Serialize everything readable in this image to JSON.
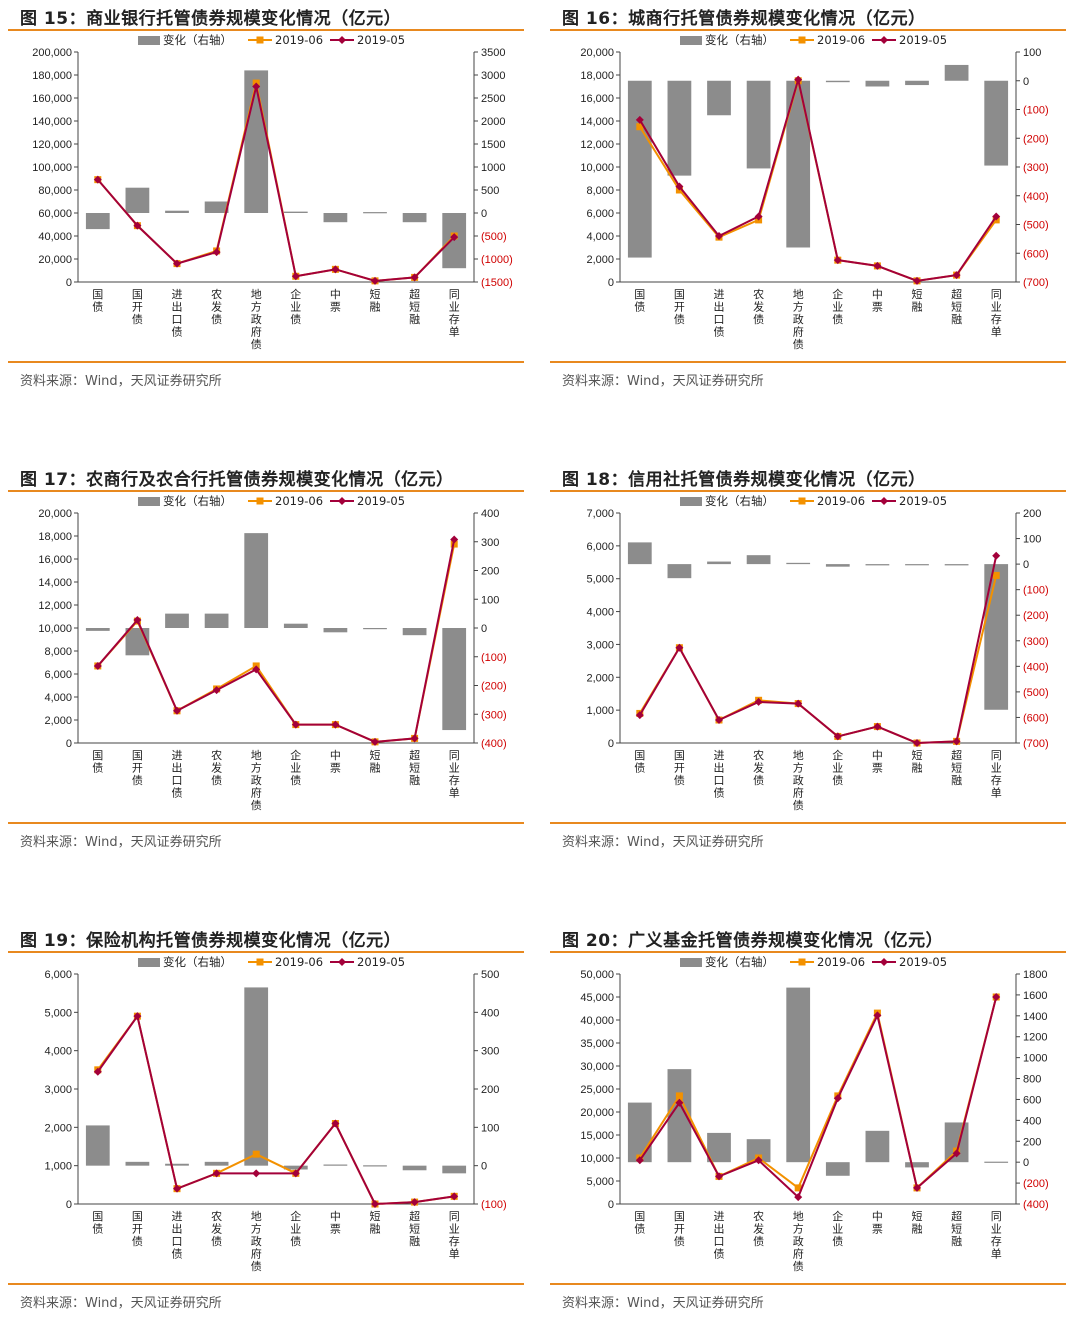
{
  "colors": {
    "bar": "#8c8c8c",
    "line_2019_06": "#f39100",
    "line_2019_05": "#a3003a",
    "rule": "#e8891f",
    "neg_tick": "#d00000"
  },
  "legend": {
    "bar_label": "变化（右轴）",
    "s1": "2019-06",
    "s2": "2019-05"
  },
  "panels": [
    {
      "title": "图 15：商业银行托管债券规模变化情况（亿元）",
      "source": "资料来源：Wind，天风证券研究所"
    },
    {
      "title": "图 16：城商行托管债券规模变化情况（亿元）",
      "source": "资料来源：Wind，天风证券研究所"
    },
    {
      "title": "图 17：农商行及农合行托管债券规模变化情况（亿元）",
      "source": "资料来源：Wind，天风证券研究所"
    },
    {
      "title": "图 18：信用社托管债券规模变化情况（亿元）",
      "source": "资料来源：Wind，天风证券研究所"
    },
    {
      "title": "图 19：保险机构托管债券规模变化情况（亿元）",
      "source": "资料来源：Wind，天风证券研究所"
    },
    {
      "title": "图 20：广义基金托管债券规模变化情况（亿元）",
      "source": "资料来源：Wind，天风证券研究所"
    }
  ],
  "chart_data": [
    {
      "type": "bar+line",
      "categories": [
        "国债",
        "国开债",
        "进出口债",
        "农发债",
        "地方政府债",
        "企业债",
        "中票",
        "短融",
        "超短融",
        "同业存单"
      ],
      "left_axis": {
        "ylim": [
          0,
          200000
        ],
        "ticks": [
          "0",
          "20,000",
          "40,000",
          "60,000",
          "80,000",
          "100,000",
          "120,000",
          "140,000",
          "160,000",
          "180,000",
          "200,000"
        ]
      },
      "right_axis": {
        "ylim": [
          -1500,
          3500
        ],
        "ticks": [
          "(1500)",
          "(1000)",
          "(500)",
          "0",
          "500",
          "1000",
          "1500",
          "2000",
          "2500",
          "3000",
          "3500"
        ]
      },
      "series": [
        {
          "name": "变化（右轴）",
          "kind": "bar",
          "axis": "right",
          "values": [
            -350,
            550,
            50,
            250,
            3100,
            30,
            -200,
            20,
            -200,
            -1200
          ]
        },
        {
          "name": "2019-06",
          "kind": "line",
          "axis": "left",
          "values": [
            89000,
            49000,
            16000,
            27000,
            173000,
            5000,
            11000,
            1000,
            4000,
            40000
          ]
        },
        {
          "name": "2019-05",
          "kind": "line",
          "axis": "left",
          "values": [
            89000,
            49000,
            16000,
            26000,
            170000,
            5000,
            11000,
            1000,
            4000,
            39000
          ]
        }
      ]
    },
    {
      "type": "bar+line",
      "categories": [
        "国债",
        "国开债",
        "进出口债",
        "农发债",
        "地方政府债",
        "企业债",
        "中票",
        "短融",
        "超短融",
        "同业存单"
      ],
      "left_axis": {
        "ylim": [
          0,
          20000
        ],
        "ticks": [
          "0",
          "2,000",
          "4,000",
          "6,000",
          "8,000",
          "10,000",
          "12,000",
          "14,000",
          "16,000",
          "18,000",
          "20,000"
        ]
      },
      "right_axis": {
        "ylim": [
          -700,
          100
        ],
        "ticks": [
          "(700)",
          "(600)",
          "(500)",
          "(400)",
          "(300)",
          "(200)",
          "(100)",
          "0",
          "100"
        ]
      },
      "series": [
        {
          "name": "变化（右轴）",
          "kind": "bar",
          "axis": "right",
          "values": [
            -615,
            -330,
            -120,
            -305,
            -580,
            -5,
            -20,
            -15,
            55,
            -295
          ]
        },
        {
          "name": "2019-06",
          "kind": "line",
          "axis": "left",
          "values": [
            13500,
            8000,
            3900,
            5400,
            17500,
            1900,
            1400,
            100,
            600,
            5400
          ]
        },
        {
          "name": "2019-05",
          "kind": "line",
          "axis": "left",
          "values": [
            14100,
            8300,
            4000,
            5700,
            17600,
            1900,
            1400,
            100,
            600,
            5700
          ]
        }
      ]
    },
    {
      "type": "bar+line",
      "categories": [
        "国债",
        "国开债",
        "进出口债",
        "农发债",
        "地方政府债",
        "企业债",
        "中票",
        "短融",
        "超短融",
        "同业存单"
      ],
      "left_axis": {
        "ylim": [
          0,
          20000
        ],
        "ticks": [
          "0",
          "2,000",
          "4,000",
          "6,000",
          "8,000",
          "10,000",
          "12,000",
          "14,000",
          "16,000",
          "18,000",
          "20,000"
        ]
      },
      "right_axis": {
        "ylim": [
          -400,
          400
        ],
        "ticks": [
          "(400)",
          "(300)",
          "(200)",
          "(100)",
          "0",
          "100",
          "200",
          "300",
          "400"
        ]
      },
      "series": [
        {
          "name": "变化（右轴）",
          "kind": "bar",
          "axis": "right",
          "values": [
            -10,
            -95,
            50,
            50,
            330,
            15,
            -15,
            0,
            -25,
            -355
          ]
        },
        {
          "name": "2019-06",
          "kind": "line",
          "axis": "left",
          "values": [
            6700,
            10600,
            2800,
            4700,
            6700,
            1600,
            1600,
            100,
            400,
            17300
          ]
        },
        {
          "name": "2019-05",
          "kind": "line",
          "axis": "left",
          "values": [
            6700,
            10700,
            2800,
            4600,
            6400,
            1600,
            1600,
            100,
            400,
            17700
          ]
        }
      ]
    },
    {
      "type": "bar+line",
      "categories": [
        "国债",
        "国开债",
        "进出口债",
        "农发债",
        "地方政府债",
        "企业债",
        "中票",
        "短融",
        "超短融",
        "同业存单"
      ],
      "left_axis": {
        "ylim": [
          0,
          7000
        ],
        "ticks": [
          "0",
          "1,000",
          "2,000",
          "3,000",
          "4,000",
          "5,000",
          "6,000",
          "7,000"
        ]
      },
      "right_axis": {
        "ylim": [
          -700,
          200
        ],
        "ticks": [
          "(700)",
          "(600)",
          "(500)",
          "(400)",
          "(300)",
          "(200)",
          "(100)",
          "0",
          "100",
          "200"
        ]
      },
      "series": [
        {
          "name": "变化（右轴）",
          "kind": "bar",
          "axis": "right",
          "values": [
            85,
            -55,
            10,
            35,
            5,
            -10,
            -5,
            0,
            -5,
            -570
          ]
        },
        {
          "name": "2019-06",
          "kind": "line",
          "axis": "left",
          "values": [
            900,
            2900,
            700,
            1300,
            1200,
            200,
            500,
            0,
            50,
            5100
          ]
        },
        {
          "name": "2019-05",
          "kind": "line",
          "axis": "left",
          "values": [
            850,
            2900,
            700,
            1250,
            1200,
            200,
            500,
            0,
            50,
            5700
          ]
        }
      ]
    },
    {
      "type": "bar+line",
      "categories": [
        "国债",
        "国开债",
        "进出口债",
        "农发债",
        "地方政府债",
        "企业债",
        "中票",
        "短融",
        "超短融",
        "同业存单"
      ],
      "left_axis": {
        "ylim": [
          0,
          6000
        ],
        "ticks": [
          "0",
          "1,000",
          "2,000",
          "3,000",
          "4,000",
          "5,000",
          "6,000"
        ]
      },
      "right_axis": {
        "ylim": [
          -100,
          500
        ],
        "ticks": [
          "(100)",
          "0",
          "100",
          "200",
          "300",
          "400",
          "500"
        ]
      },
      "series": [
        {
          "name": "变化（右轴）",
          "kind": "bar",
          "axis": "right",
          "values": [
            105,
            10,
            5,
            10,
            465,
            -10,
            3,
            1,
            -12,
            -20
          ]
        },
        {
          "name": "2019-06",
          "kind": "line",
          "axis": "left",
          "values": [
            3500,
            4900,
            400,
            800,
            1300,
            800,
            2100,
            0,
            50,
            200
          ]
        },
        {
          "name": "2019-05",
          "kind": "line",
          "axis": "left",
          "values": [
            3450,
            4900,
            400,
            800,
            800,
            800,
            2100,
            0,
            50,
            200
          ]
        }
      ]
    },
    {
      "type": "bar+line",
      "categories": [
        "国债",
        "国开债",
        "进出口债",
        "农发债",
        "地方政府债",
        "企业债",
        "中票",
        "短融",
        "超短融",
        "同业存单"
      ],
      "left_axis": {
        "ylim": [
          0,
          50000
        ],
        "ticks": [
          "0",
          "5,000",
          "10,000",
          "15,000",
          "20,000",
          "25,000",
          "30,000",
          "35,000",
          "40,000",
          "45,000",
          "50,000"
        ]
      },
      "right_axis": {
        "ylim": [
          -400,
          1800
        ],
        "ticks": [
          "(400)",
          "(200)",
          "0",
          "200",
          "400",
          "600",
          "800",
          "1000",
          "1200",
          "1400",
          "1600",
          "1800"
        ]
      },
      "series": [
        {
          "name": "变化（右轴）",
          "kind": "bar",
          "axis": "right",
          "values": [
            570,
            890,
            280,
            220,
            1670,
            -130,
            300,
            -50,
            380,
            5
          ]
        },
        {
          "name": "2019-06",
          "kind": "line",
          "axis": "left",
          "values": [
            10000,
            23500,
            6000,
            10000,
            3500,
            23500,
            41500,
            3500,
            11500,
            45000
          ]
        },
        {
          "name": "2019-05",
          "kind": "line",
          "axis": "left",
          "values": [
            9500,
            22000,
            6000,
            9500,
            1500,
            23000,
            41000,
            3500,
            11000,
            45000
          ]
        }
      ]
    }
  ]
}
